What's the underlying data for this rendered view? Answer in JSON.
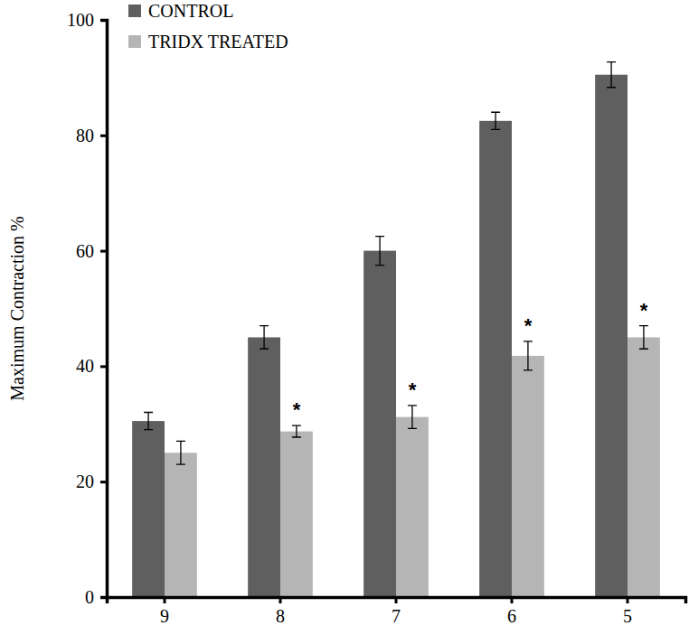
{
  "chart_data": {
    "type": "bar",
    "y_label": "Maximum Contraction %",
    "categories": [
      "9",
      "8",
      "7",
      "6",
      "5"
    ],
    "series": [
      {
        "name": "CONTROL",
        "color": "#5f5f5f",
        "values": [
          30.5,
          45,
          60,
          82.5,
          90.5
        ],
        "errors": [
          1.5,
          2,
          2.5,
          1.5,
          2.2
        ]
      },
      {
        "name": "TRIDX TREATED",
        "color": "#b5b5b5",
        "values": [
          25,
          28.7,
          31.2,
          41.8,
          45
        ],
        "errors": [
          2,
          1,
          2,
          2.5,
          2
        ],
        "significance": [
          null,
          "*",
          "*",
          "*",
          "*"
        ]
      }
    ],
    "ylim": [
      0,
      100
    ],
    "yticks": [
      0,
      20,
      40,
      60,
      80,
      100
    ],
    "legend": "top-left",
    "grid": false
  }
}
